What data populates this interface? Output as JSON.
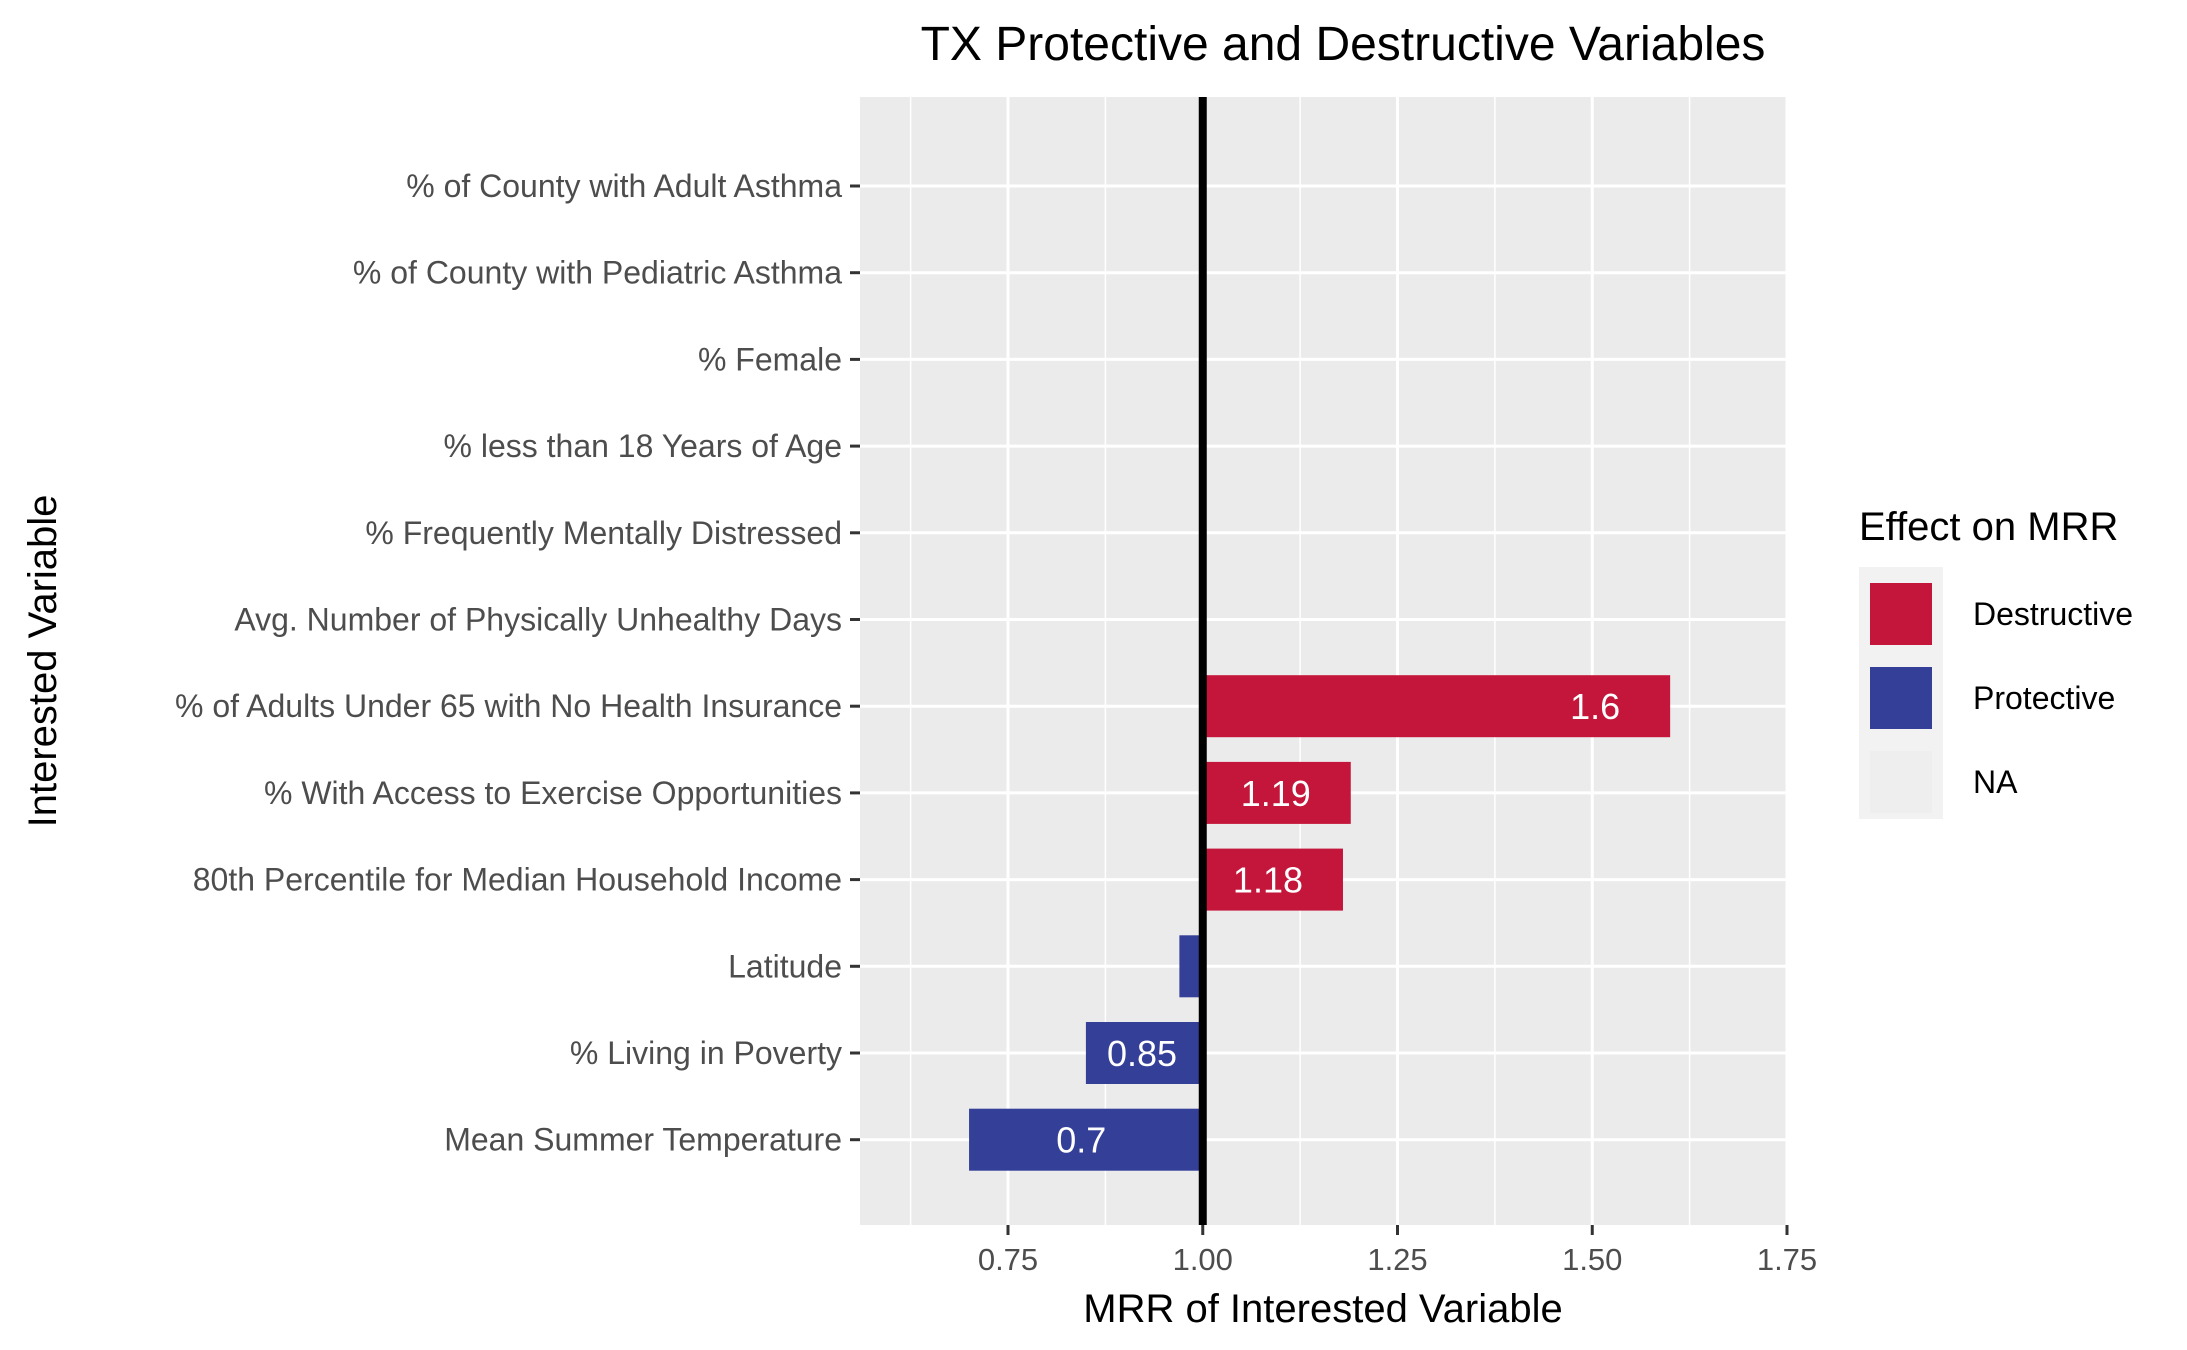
{
  "chart_data": {
    "type": "bar",
    "orientation": "horizontal",
    "title": "TX Protective and Destructive Variables",
    "xlabel": "MRR of Interested Variable",
    "ylabel": "Interested Variable",
    "xlim": [
      0.56,
      1.75
    ],
    "xticks": [
      "0.75",
      "1.00",
      "1.25",
      "1.50",
      "1.75"
    ],
    "reference_line": 1.0,
    "grid": true,
    "legend_position": "right",
    "legend": {
      "title": "Effect on MRR",
      "entries": [
        {
          "label": "Destructive",
          "color": "#c4163a"
        },
        {
          "label": "Protective",
          "color": "#343f98"
        },
        {
          "label": "NA",
          "color": "#eeeeee"
        }
      ]
    },
    "categories": [
      "% of County with Adult Asthma",
      "% of County with Pediatric Asthma",
      "% Female",
      "% less than 18 Years of Age",
      "% Frequently Mentally Distressed",
      "Avg. Number of Physically Unhealthy Days",
      "% of Adults Under 65 with No Health Insurance",
      "% With Access to Exercise Opportunities",
      "80th Percentile for Median Household Income",
      "Latitude",
      "% Living in Poverty",
      "Mean Summer Temperature"
    ],
    "values": [
      null,
      null,
      null,
      null,
      null,
      null,
      1.6,
      1.19,
      1.18,
      0.97,
      0.85,
      0.7
    ],
    "effects": [
      "NA",
      "NA",
      "NA",
      "NA",
      "NA",
      "NA",
      "Destructive",
      "Destructive",
      "Destructive",
      "Protective",
      "Protective",
      "Protective"
    ],
    "data_labels": [
      "",
      "",
      "",
      "",
      "",
      "",
      "1.6",
      "1.19",
      "1.18",
      "",
      "0.85",
      "0.7"
    ]
  }
}
